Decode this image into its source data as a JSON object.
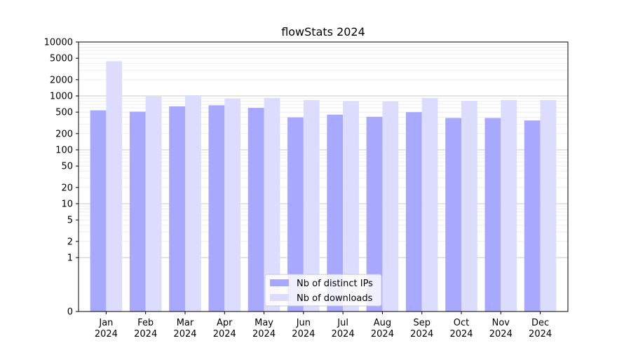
{
  "chart_data": {
    "type": "bar",
    "title": "flowStats 2024",
    "xlabel": "",
    "ylabel": "",
    "yscale": "symlog",
    "ylim": [
      0,
      10000
    ],
    "grid": true,
    "legend_position": "bottom-center",
    "y_ticks": [
      "0",
      "1",
      "2",
      "5",
      "10",
      "20",
      "50",
      "100",
      "200",
      "500",
      "1000",
      "2000",
      "5000",
      "10000"
    ],
    "categories": [
      [
        "Jan",
        "2024"
      ],
      [
        "Feb",
        "2024"
      ],
      [
        "Mar",
        "2024"
      ],
      [
        "Apr",
        "2024"
      ],
      [
        "May",
        "2024"
      ],
      [
        "Jun",
        "2024"
      ],
      [
        "Jul",
        "2024"
      ],
      [
        "Aug",
        "2024"
      ],
      [
        "Sep",
        "2024"
      ],
      [
        "Oct",
        "2024"
      ],
      [
        "Nov",
        "2024"
      ],
      [
        "Dec",
        "2024"
      ]
    ],
    "series": [
      {
        "name": "Nb of distinct IPs",
        "color": "#a8a8ff",
        "values": [
          540,
          510,
          640,
          670,
          600,
          400,
          450,
          410,
          500,
          390,
          390,
          350
        ]
      },
      {
        "name": "Nb of downloads",
        "color": "#dcdcff",
        "values": [
          4400,
          1000,
          1030,
          890,
          920,
          840,
          800,
          790,
          920,
          810,
          840,
          840
        ]
      }
    ]
  }
}
